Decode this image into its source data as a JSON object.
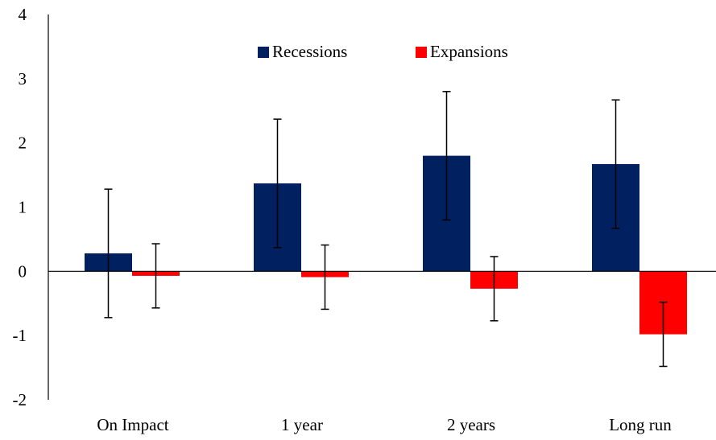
{
  "chart_data": {
    "type": "bar",
    "categories": [
      "On Impact",
      "1 year",
      "2 years",
      "Long run"
    ],
    "series": [
      {
        "name": "Recessions",
        "values": [
          0.28,
          1.37,
          1.8,
          1.67
        ],
        "error_low": [
          -0.72,
          0.37,
          0.8,
          0.67
        ],
        "error_high": [
          1.28,
          2.37,
          2.8,
          2.67
        ],
        "color": "#002060"
      },
      {
        "name": "Expansions",
        "values": [
          -0.07,
          -0.09,
          -0.27,
          -0.98
        ],
        "error_low": [
          -0.57,
          -0.59,
          -0.77,
          -1.48
        ],
        "error_high": [
          0.43,
          0.41,
          0.23,
          -0.48
        ],
        "color": "#ff0000"
      }
    ],
    "yticks": [
      "4",
      "3",
      "2",
      "1",
      "0",
      "-1",
      "-2"
    ],
    "ylim": [
      -2,
      4
    ],
    "legend": "top-center",
    "grid": false,
    "title": "",
    "xlabel": "",
    "ylabel": ""
  }
}
